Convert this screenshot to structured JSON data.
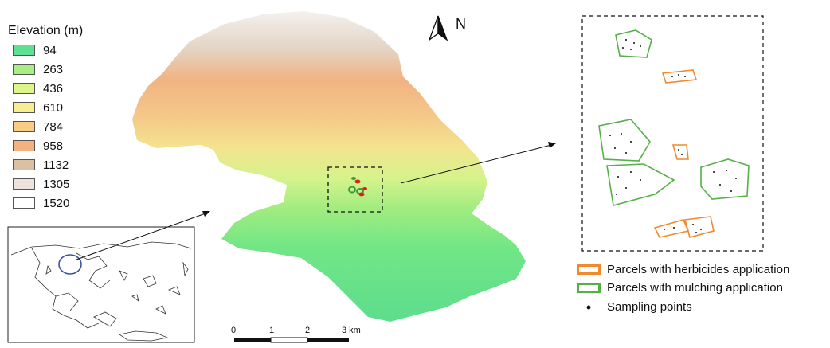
{
  "legend": {
    "title": "Elevation (m)",
    "items": [
      {
        "label": "94",
        "color": "#5de08f"
      },
      {
        "label": "263",
        "color": "#a9ee82"
      },
      {
        "label": "436",
        "color": "#ddf68a"
      },
      {
        "label": "610",
        "color": "#f6ee8f"
      },
      {
        "label": "784",
        "color": "#f8cc84"
      },
      {
        "label": "958",
        "color": "#f1b27d"
      },
      {
        "label": "1132",
        "color": "#dcc0a4"
      },
      {
        "label": "1305",
        "color": "#ece4dc"
      },
      {
        "label": "1520",
        "color": "#ffffff"
      }
    ]
  },
  "north_arrow": {
    "label": "N"
  },
  "scale_bar": {
    "ticks": [
      "0",
      "1",
      "2",
      "3 km"
    ]
  },
  "parcel_legend": {
    "herbicides": {
      "label": "Parcels with herbicides application",
      "color": "#f08a2c"
    },
    "mulching": {
      "label": "Parcels with mulching application",
      "color": "#55b046"
    },
    "sampling": {
      "label": "Sampling points",
      "icon": "dot-icon"
    }
  },
  "colors": {
    "inset_circle": "#3a56a0",
    "marker_red": "#e02020",
    "marker_green": "#3c9a3c"
  }
}
